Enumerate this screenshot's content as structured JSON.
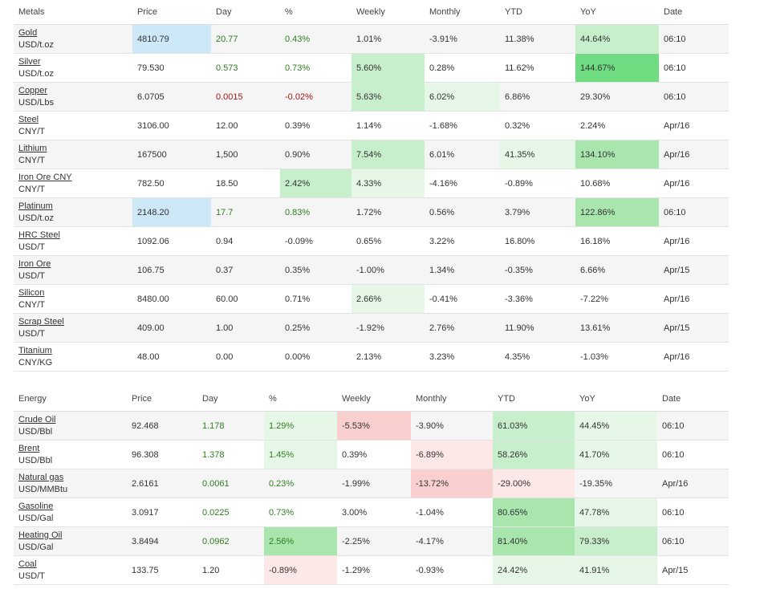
{
  "metals": {
    "headers": [
      "Metals",
      "Price",
      "Day",
      "%",
      "Weekly",
      "Monthly",
      "YTD",
      "YoY",
      "Date"
    ],
    "rows": [
      {
        "name": "Gold",
        "unit": "USD/t.oz",
        "price": "4810.79",
        "day": "20.77",
        "pct": "0.43%",
        "weekly": "1.01%",
        "monthly": "-3.91%",
        "ytd": "11.38%",
        "yoy": "44.64%",
        "date": "06:10"
      },
      {
        "name": "Silver",
        "unit": "USD/t.oz",
        "price": "79.530",
        "day": "0.573",
        "pct": "0.73%",
        "weekly": "5.60%",
        "monthly": "0.28%",
        "ytd": "11.62%",
        "yoy": "144.67%",
        "date": "06:10"
      },
      {
        "name": "Copper",
        "unit": "USD/Lbs",
        "price": "6.0705",
        "day": "0.0015",
        "pct": "-0.02%",
        "weekly": "5.63%",
        "monthly": "6.02%",
        "ytd": "6.86%",
        "yoy": "29.30%",
        "date": "06:10"
      },
      {
        "name": "Steel",
        "unit": "CNY/T",
        "price": "3106.00",
        "day": "12.00",
        "pct": "0.39%",
        "weekly": "1.14%",
        "monthly": "-1.68%",
        "ytd": "0.32%",
        "yoy": "2.24%",
        "date": "Apr/16"
      },
      {
        "name": "Lithium",
        "unit": "CNY/T",
        "price": "167500",
        "day": "1,500",
        "pct": "0.90%",
        "weekly": "7.54%",
        "monthly": "6.01%",
        "ytd": "41.35%",
        "yoy": "134.10%",
        "date": "Apr/16"
      },
      {
        "name": "Iron Ore CNY",
        "unit": "CNY/T",
        "price": "782.50",
        "day": "18.50",
        "pct": "2.42%",
        "weekly": "4.33%",
        "monthly": "-4.16%",
        "ytd": "-0.89%",
        "yoy": "10.68%",
        "date": "Apr/16"
      },
      {
        "name": "Platinum",
        "unit": "USD/t.oz",
        "price": "2148.20",
        "day": "17.7",
        "pct": "0.83%",
        "weekly": "1.72%",
        "monthly": "0.56%",
        "ytd": "3.79%",
        "yoy": "122.86%",
        "date": "06:10"
      },
      {
        "name": "HRC Steel",
        "unit": "USD/T",
        "price": "1092.06",
        "day": "0.94",
        "pct": "-0.09%",
        "weekly": "0.65%",
        "monthly": "3.22%",
        "ytd": "16.80%",
        "yoy": "16.18%",
        "date": "Apr/16"
      },
      {
        "name": "Iron Ore",
        "unit": "USD/T",
        "price": "106.75",
        "day": "0.37",
        "pct": "0.35%",
        "weekly": "-1.00%",
        "monthly": "1.34%",
        "ytd": "-0.35%",
        "yoy": "6.66%",
        "date": "Apr/15"
      },
      {
        "name": "Silicon",
        "unit": "CNY/T",
        "price": "8480.00",
        "day": "60.00",
        "pct": "0.71%",
        "weekly": "2.66%",
        "monthly": "-0.41%",
        "ytd": "-3.36%",
        "yoy": "-7.22%",
        "date": "Apr/16"
      },
      {
        "name": "Scrap Steel",
        "unit": "USD/T",
        "price": "409.00",
        "day": "1.00",
        "pct": "0.25%",
        "weekly": "-1.92%",
        "monthly": "2.76%",
        "ytd": "11.90%",
        "yoy": "13.61%",
        "date": "Apr/15"
      },
      {
        "name": "Titanium",
        "unit": "CNY/KG",
        "price": "48.00",
        "day": "0.00",
        "pct": "0.00%",
        "weekly": "2.13%",
        "monthly": "3.23%",
        "ytd": "4.35%",
        "yoy": "-1.03%",
        "date": "Apr/16"
      }
    ]
  },
  "energy": {
    "headers": [
      "Energy",
      "Price",
      "Day",
      "%",
      "Weekly",
      "Monthly",
      "YTD",
      "YoY",
      "Date"
    ],
    "rows": [
      {
        "name": "Crude Oil",
        "unit": "USD/Bbl",
        "price": "92.468",
        "day": "1.178",
        "pct": "1.29%",
        "weekly": "-5.53%",
        "monthly": "-3.90%",
        "ytd": "61.03%",
        "yoy": "44.45%",
        "date": "06:10"
      },
      {
        "name": "Brent",
        "unit": "USD/Bbl",
        "price": "96.308",
        "day": "1.378",
        "pct": "1.45%",
        "weekly": "0.39%",
        "monthly": "-6.89%",
        "ytd": "58.26%",
        "yoy": "41.70%",
        "date": "06:10"
      },
      {
        "name": "Natural gas",
        "unit": "USD/MMBtu",
        "price": "2.6161",
        "day": "0.0061",
        "pct": "0.23%",
        "weekly": "-1.99%",
        "monthly": "-13.72%",
        "ytd": "-29.00%",
        "yoy": "-19.35%",
        "date": "Apr/16"
      },
      {
        "name": "Gasoline",
        "unit": "USD/Gal",
        "price": "3.0917",
        "day": "0.0225",
        "pct": "0.73%",
        "weekly": "3.00%",
        "monthly": "-1.04%",
        "ytd": "80.65%",
        "yoy": "47.78%",
        "date": "06:10"
      },
      {
        "name": "Heating Oil",
        "unit": "USD/Gal",
        "price": "3.8494",
        "day": "0.0962",
        "pct": "2.56%",
        "weekly": "-2.25%",
        "monthly": "-4.17%",
        "ytd": "81.40%",
        "yoy": "79.33%",
        "date": "06:10"
      },
      {
        "name": "Coal",
        "unit": "USD/T",
        "price": "133.75",
        "day": "1.20",
        "pct": "-0.89%",
        "weekly": "-1.29%",
        "monthly": "-0.93%",
        "ytd": "24.42%",
        "yoy": "41.91%",
        "date": "Apr/15"
      }
    ]
  }
}
